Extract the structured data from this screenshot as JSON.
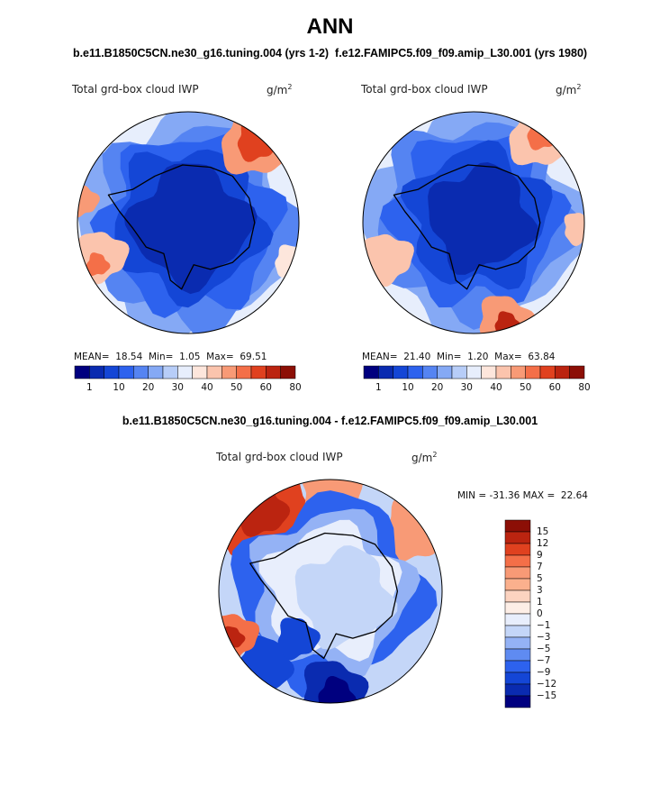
{
  "title": "ANN",
  "subtitle_left": "b.e11.B1850C5CN.ne30_g16.tuning.004 (yrs 1-2)",
  "subtitle_right": "f.e12.FAMIPC5.f09_f09.amip_L30.001 (yrs 1980)",
  "diff_title": "b.e11.B1850C5CN.ne30_g16.tuning.004 - f.e12.FAMIPC5.f09_f09.amip_L30.001",
  "chart_data": [
    {
      "type": "heatmap",
      "projection": "south-polar-stereographic",
      "variable": "Total grd-box cloud IWP",
      "units_prefix": "g/m",
      "units_exp": "2",
      "stats": {
        "mean_label": "MEAN=",
        "mean": "18.54",
        "min_label": "Min=",
        "min": "1.05",
        "max_label": "Max=",
        "max": "69.51"
      },
      "colorbar_ticks": [
        "1",
        "10",
        "20",
        "30",
        "40",
        "50",
        "60",
        "80"
      ],
      "colorbar_colors": [
        "#00007f",
        "#0a2bb0",
        "#1446d6",
        "#2d62ee",
        "#5584f2",
        "#85a9f5",
        "#b7cdf8",
        "#e7eefc",
        "#fde6dc",
        "#fbc4ad",
        "#f89a76",
        "#f46f48",
        "#e0411f",
        "#bb2410",
        "#8c0f06"
      ]
    },
    {
      "type": "heatmap",
      "projection": "south-polar-stereographic",
      "variable": "Total grd-box cloud IWP",
      "units_prefix": "g/m",
      "units_exp": "2",
      "stats": {
        "mean_label": "MEAN=",
        "mean": "21.40",
        "min_label": "Min=",
        "min": "1.20",
        "max_label": "Max=",
        "max": "63.84"
      },
      "colorbar_ticks": [
        "1",
        "10",
        "20",
        "30",
        "40",
        "50",
        "60",
        "80"
      ],
      "colorbar_colors": [
        "#00007f",
        "#0a2bb0",
        "#1446d6",
        "#2d62ee",
        "#5584f2",
        "#85a9f5",
        "#b7cdf8",
        "#e7eefc",
        "#fde6dc",
        "#fbc4ad",
        "#f89a76",
        "#f46f48",
        "#e0411f",
        "#bb2410",
        "#8c0f06"
      ]
    },
    {
      "type": "heatmap",
      "projection": "south-polar-stereographic",
      "variable": "Total grd-box cloud IWP",
      "units_prefix": "g/m",
      "units_exp": "2",
      "minmax_text": "MIN = -31.36 MAX =  22.64",
      "colorbar_ticks": [
        "15",
        "12",
        "9",
        "7",
        "5",
        "3",
        "1",
        "0",
        "−1",
        "−3",
        "−5",
        "−7",
        "−9",
        "−12",
        "−15"
      ],
      "colorbar_colors": [
        "#8c0f06",
        "#bb2410",
        "#e0411f",
        "#f46f48",
        "#f89a76",
        "#fbb08d",
        "#fcd3c0",
        "#fdeee6",
        "#e8eefc",
        "#c4d6f8",
        "#94b2f5",
        "#5f8bf1",
        "#2d62ee",
        "#1446d6",
        "#0a2bb0",
        "#00007f"
      ]
    }
  ]
}
